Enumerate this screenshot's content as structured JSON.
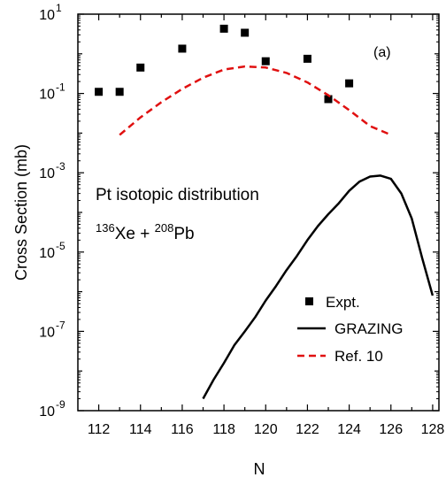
{
  "chart_data": {
    "type": "scatter",
    "panel_label": "(a)",
    "xlabel": "N",
    "ylabel": "Cross Section (mb)",
    "xlim": [
      111,
      128.3
    ],
    "ylim": [
      1e-09,
      10
    ],
    "y_scale": "log",
    "x_ticks": [
      112,
      114,
      116,
      118,
      120,
      122,
      124,
      126,
      128
    ],
    "y_ticks": [
      {
        "value": 1e-09,
        "base": "10",
        "exp": "-9"
      },
      {
        "value": 1e-07,
        "base": "10",
        "exp": "-7"
      },
      {
        "value": 1e-05,
        "base": "10",
        "exp": "-5"
      },
      {
        "value": 0.001,
        "base": "10",
        "exp": "-3"
      },
      {
        "value": 0.1,
        "base": "10",
        "exp": "-1"
      },
      {
        "value": 10,
        "base": "10",
        "exp": "1"
      }
    ],
    "annotation": {
      "line1": "Pt isotopic distribution",
      "line2_mass1": "136",
      "line2_el1": "Xe + ",
      "line2_mass2": "208",
      "line2_el2": "Pb"
    },
    "series": [
      {
        "name": "Expt.",
        "type": "scatter",
        "color": "#000000",
        "marker": "square",
        "x": [
          112,
          113,
          114,
          116,
          118,
          119,
          120,
          122,
          123,
          124
        ],
        "y": [
          0.11,
          0.11,
          0.45,
          1.35,
          4.3,
          3.4,
          0.65,
          0.75,
          0.072,
          0.18
        ]
      },
      {
        "name": "GRAZING",
        "type": "line",
        "color": "#000000",
        "dash": "solid",
        "x": [
          117,
          117.5,
          118,
          118.5,
          119,
          119.5,
          120,
          120.5,
          121,
          121.5,
          122,
          122.5,
          123,
          123.5,
          124,
          124.5,
          125,
          125.5,
          126,
          126.5,
          127,
          127.5,
          128
        ],
        "y": [
          2e-09,
          6e-09,
          1.6e-08,
          4.5e-08,
          1e-07,
          2.3e-07,
          6e-07,
          1.4e-06,
          3.5e-06,
          8e-06,
          2e-05,
          4.5e-05,
          9e-05,
          0.00017,
          0.00035,
          0.0006,
          0.0008,
          0.00085,
          0.0007,
          0.0003,
          7e-05,
          7e-06,
          8e-07
        ]
      },
      {
        "name": "Ref. 10",
        "type": "line",
        "color": "#e01010",
        "dash": "dashed",
        "x": [
          113,
          114,
          115,
          116,
          117,
          118,
          119,
          120,
          121,
          122,
          123,
          124,
          125,
          126
        ],
        "y": [
          0.009,
          0.025,
          0.06,
          0.13,
          0.25,
          0.4,
          0.48,
          0.45,
          0.33,
          0.19,
          0.09,
          0.038,
          0.015,
          0.009
        ]
      }
    ]
  }
}
